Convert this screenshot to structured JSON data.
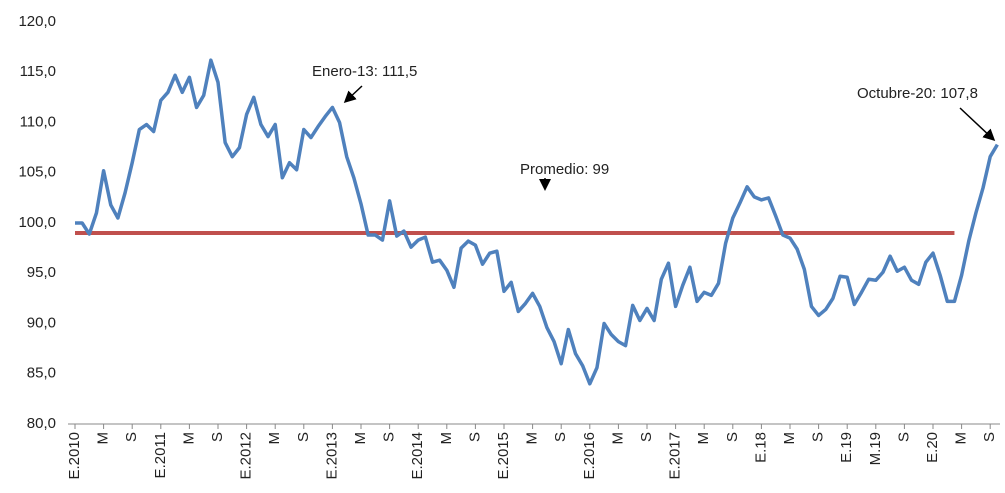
{
  "chart_data": {
    "type": "line",
    "categories": [
      "E.2010",
      null,
      null,
      null,
      "M",
      null,
      null,
      null,
      "S",
      null,
      null,
      null,
      "E.2011",
      null,
      null,
      null,
      "M",
      null,
      null,
      null,
      "S",
      null,
      null,
      null,
      "E.2012",
      null,
      null,
      null,
      "M",
      null,
      null,
      null,
      "S",
      null,
      null,
      null,
      "E.2013",
      null,
      null,
      null,
      "M",
      null,
      null,
      null,
      "S",
      null,
      null,
      null,
      "E.2014",
      null,
      null,
      null,
      "M",
      null,
      null,
      null,
      "S",
      null,
      null,
      null,
      "E.2015",
      null,
      null,
      null,
      "M",
      null,
      null,
      null,
      "S",
      null,
      null,
      null,
      "E.2016",
      null,
      null,
      null,
      "M",
      null,
      null,
      null,
      "S",
      null,
      null,
      null,
      "E.2017",
      null,
      null,
      null,
      "M",
      null,
      null,
      null,
      "S",
      null,
      null,
      null,
      "E.18",
      null,
      null,
      null,
      "M",
      null,
      null,
      null,
      "S",
      null,
      null,
      null,
      "E.19",
      null,
      null,
      null,
      "M.19",
      null,
      null,
      null,
      "S",
      null,
      null,
      null,
      "E.20",
      null,
      null,
      null,
      "M",
      null,
      null,
      null,
      "S",
      null
    ],
    "series": [
      {
        "color": "#4f81bd",
        "values": [
          100.0,
          100.0,
          98.9,
          101.0,
          105.2,
          101.8,
          100.5,
          103.0,
          106.0,
          109.3,
          109.8,
          109.1,
          112.2,
          113.0,
          114.7,
          113.0,
          114.5,
          111.5,
          112.7,
          116.2,
          114.0,
          108.0,
          106.6,
          107.5,
          110.8,
          112.5,
          109.8,
          108.6,
          109.8,
          104.5,
          106.0,
          105.3,
          109.3,
          108.5,
          109.6,
          110.6,
          111.5,
          110.0,
          106.6,
          104.5,
          101.9,
          98.8,
          98.8,
          98.3,
          102.2,
          98.7,
          99.2,
          97.6,
          98.3,
          98.6,
          96.1,
          96.3,
          95.3,
          93.6,
          97.5,
          98.2,
          97.8,
          95.9,
          97.0,
          97.2,
          93.2,
          94.1,
          91.2,
          92.0,
          93.0,
          91.7,
          89.6,
          88.2,
          86.0,
          89.4,
          87.0,
          85.8,
          84.0,
          85.6,
          90.0,
          88.9,
          88.2,
          87.8,
          91.8,
          90.3,
          91.5,
          90.3,
          94.4,
          96.0,
          91.7,
          93.8,
          95.6,
          92.2,
          93.1,
          92.8,
          94.0,
          98.0,
          100.5,
          102.0,
          103.6,
          102.6,
          102.3,
          102.5,
          100.7,
          98.8,
          98.5,
          97.4,
          95.4,
          91.7,
          90.8,
          91.4,
          92.5,
          94.7,
          94.6,
          91.9,
          93.1,
          94.4,
          94.3,
          95.1,
          96.7,
          95.2,
          95.6,
          94.3,
          93.9,
          96.1,
          97.0,
          94.8,
          92.2,
          92.2,
          94.8,
          98.2,
          101.0,
          103.5,
          106.6,
          107.8
        ]
      }
    ],
    "reference_line": {
      "value": 99,
      "color": "#c0504d"
    },
    "annotations": [
      "Enero-13: 111,5",
      "Promedio: 99",
      "Octubre-20: 107,8"
    ],
    "ylim": [
      80,
      120
    ],
    "yticks": [
      {
        "value": 80,
        "label": "80,0"
      },
      {
        "value": 85,
        "label": "85,0"
      },
      {
        "value": 90,
        "label": "90,0"
      },
      {
        "value": 95,
        "label": "95,0"
      },
      {
        "value": 100,
        "label": "100,0"
      },
      {
        "value": 105,
        "label": "105,0"
      },
      {
        "value": 110,
        "label": "110,0"
      },
      {
        "value": 115,
        "label": "115,0"
      },
      {
        "value": 120,
        "label": "120,0"
      }
    ],
    "grid": false
  }
}
